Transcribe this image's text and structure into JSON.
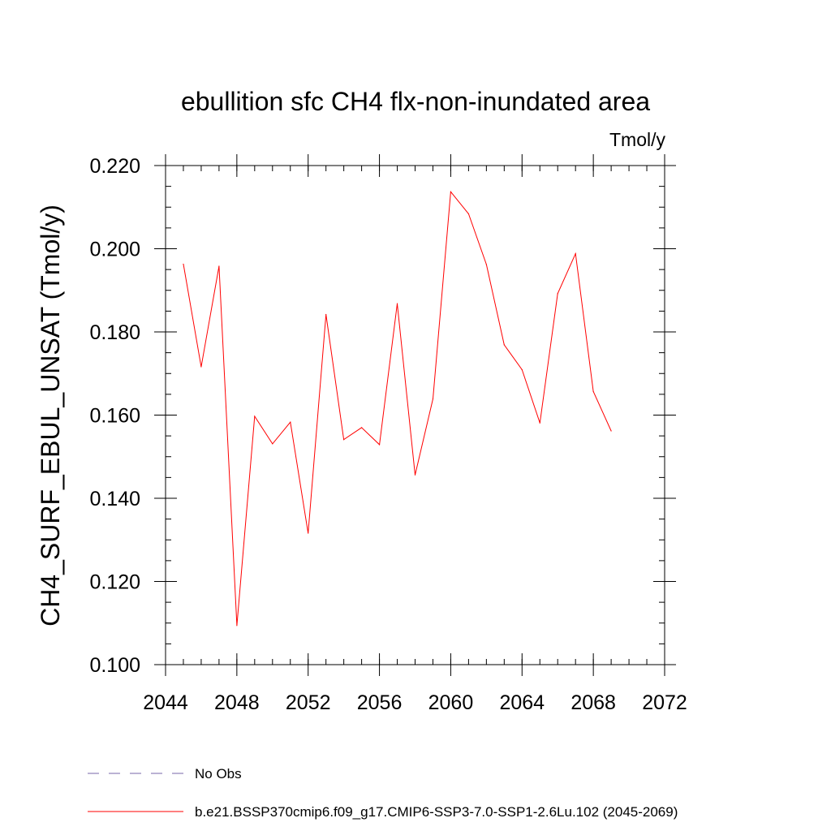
{
  "chart_data": {
    "type": "line",
    "title": "ebullition sfc CH4 flx-non-inundated area",
    "units_label": "Tmol/y",
    "ylabel": "CH4_SURF_EBUL_UNSAT  (Tmol/y)",
    "xlabel": "",
    "xlim": [
      2044,
      2072
    ],
    "ylim": [
      0.1,
      0.22
    ],
    "x_major_ticks": [
      2044,
      2048,
      2052,
      2056,
      2060,
      2064,
      2068,
      2072
    ],
    "x_tick_labels": [
      "2044",
      "2048",
      "2052",
      "2056",
      "2060",
      "2064",
      "2068",
      "2072"
    ],
    "y_major_ticks": [
      0.1,
      0.12,
      0.14,
      0.16,
      0.18,
      0.2,
      0.22
    ],
    "y_tick_labels": [
      "0.100",
      "0.120",
      "0.140",
      "0.160",
      "0.180",
      "0.200",
      "0.220"
    ],
    "x_minor_step": 1,
    "y_minor_step": 0.005,
    "grid": false,
    "legend_placement": "bottom",
    "series": [
      {
        "name": "b.e21.BSSP370cmip6.f09_g17.CMIP6-SSP3-7.0-SSP1-2.6Lu.102 (2045-2069)",
        "color": "#ff0000",
        "style": "solid",
        "x": [
          2045,
          2046,
          2047,
          2048,
          2049,
          2050,
          2051,
          2052,
          2053,
          2054,
          2055,
          2056,
          2057,
          2058,
          2059,
          2060,
          2061,
          2062,
          2063,
          2064,
          2065,
          2066,
          2067,
          2068,
          2069
        ],
        "y": [
          0.1963,
          0.1716,
          0.1958,
          0.1094,
          0.1597,
          0.1531,
          0.1583,
          0.1316,
          0.1842,
          0.1541,
          0.157,
          0.1529,
          0.1868,
          0.1456,
          0.1639,
          0.2137,
          0.2084,
          0.1962,
          0.1769,
          0.1709,
          0.1581,
          0.1892,
          0.1988,
          0.1657,
          0.1562
        ]
      }
    ],
    "legend": [
      {
        "label": "No Obs",
        "color": "#7766aa",
        "style": "dashed"
      },
      {
        "label": "b.e21.BSSP370cmip6.f09_g17.CMIP6-SSP3-7.0-SSP1-2.6Lu.102 (2045-2069)",
        "color": "#ff0000",
        "style": "solid"
      }
    ]
  }
}
